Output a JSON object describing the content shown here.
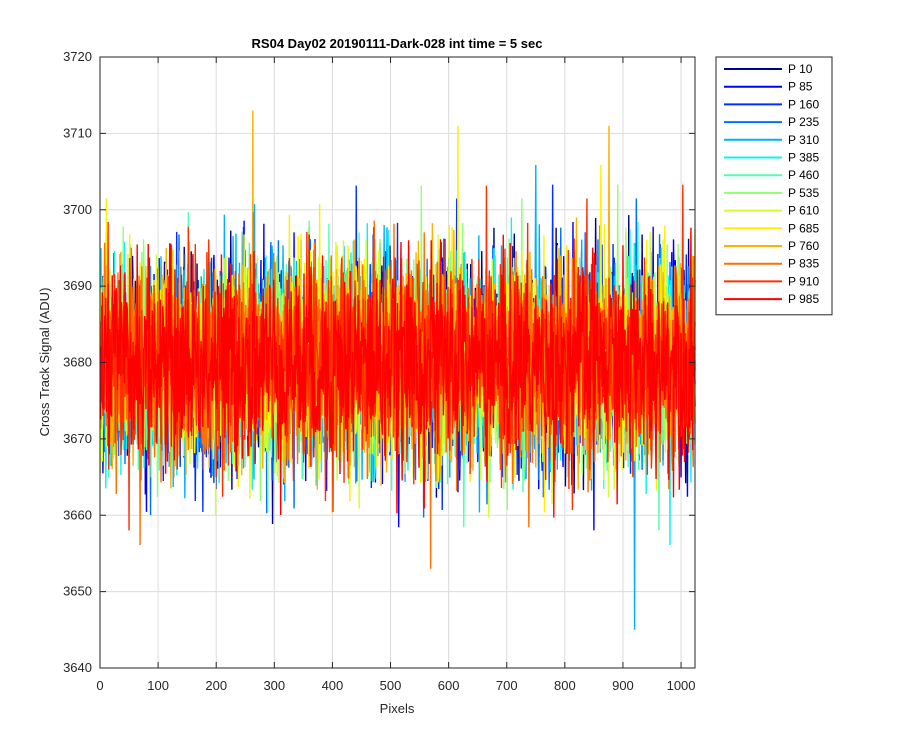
{
  "chart_data": {
    "type": "line",
    "title": "RS04 Day02 20190111-Dark-028 int time = 5 sec",
    "xlabel": "Pixels",
    "ylabel": "Cross Track Signal (ADU)",
    "xlim": [
      0,
      1024
    ],
    "ylim": [
      3640,
      3720
    ],
    "xticks": [
      0,
      100,
      200,
      300,
      400,
      500,
      600,
      700,
      800,
      900,
      1000
    ],
    "yticks": [
      3640,
      3650,
      3660,
      3670,
      3680,
      3690,
      3700,
      3710,
      3720
    ],
    "grid": true,
    "legend_position": "outside-top-right",
    "series_baseline": 3680,
    "series_noise_sigma": 6.5,
    "series": [
      {
        "name": "P 10",
        "color": "#00008F"
      },
      {
        "name": "P 85",
        "color": "#0000FF"
      },
      {
        "name": "P 160",
        "color": "#0030FF"
      },
      {
        "name": "P 235",
        "color": "#0070FF"
      },
      {
        "name": "P 310",
        "color": "#00B0FF"
      },
      {
        "name": "P 385",
        "color": "#10F0F0"
      },
      {
        "name": "P 460",
        "color": "#50FFB0"
      },
      {
        "name": "P 535",
        "color": "#90FF70"
      },
      {
        "name": "P 610",
        "color": "#D0FF30"
      },
      {
        "name": "P 685",
        "color": "#FFF000"
      },
      {
        "name": "P 760",
        "color": "#FFB000"
      },
      {
        "name": "P 835",
        "color": "#FF7000"
      },
      {
        "name": "P 910",
        "color": "#FF3000"
      },
      {
        "name": "P 985",
        "color": "#FF0000"
      }
    ],
    "notable_extremes": [
      {
        "series": "P 760",
        "x": 262,
        "y": 3713
      },
      {
        "series": "P 310",
        "x": 919,
        "y": 3645
      },
      {
        "series": "P 835",
        "x": 568,
        "y": 3653
      },
      {
        "series": "P 685",
        "x": 615,
        "y": 3711
      },
      {
        "series": "P 760",
        "x": 875,
        "y": 3711
      }
    ]
  }
}
